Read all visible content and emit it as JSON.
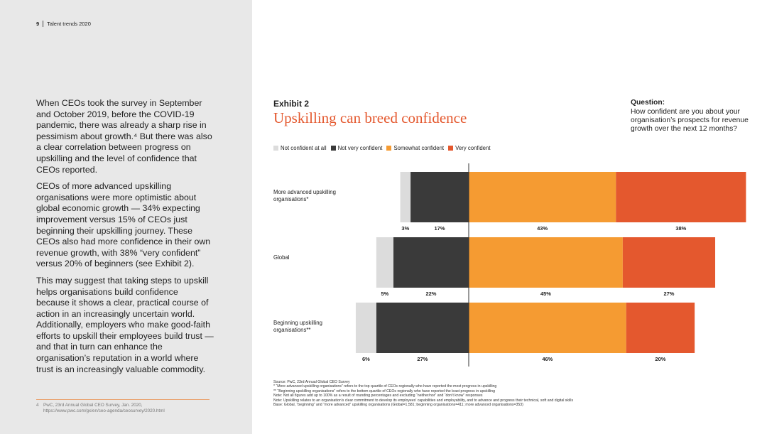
{
  "header": {
    "page_number": "9",
    "title": "Talent trends 2020"
  },
  "body": [
    "When CEOs took the survey in September and October 2019, before the COVID-19 pandemic, there was already a sharp rise in pessimism about growth.⁴ But there was also a clear correlation between progress on upskilling and the level of confidence that CEOs reported.",
    "CEOs of more advanced upskilling organisations were more optimistic about global economic growth — 34% expecting improvement versus 15% of CEOs just beginning their upskilling journey. These CEOs also had more confidence in their own revenue growth, with 38% “very confident” versus 20% of beginners (see Exhibit 2).",
    "This may suggest that taking steps to upskill helps organisations build confidence because it shows a clear, practical course of action in an increasingly uncertain world. Additionally, employers who make good-faith efforts to upskill their employees build trust — and that in turn can enhance the organisation’s reputation in a world where trust is an increasingly valuable commodity."
  ],
  "footnote": {
    "number": "4",
    "text": "PwC, 23rd Annual Global CEO Survey, Jan. 2020,",
    "url": "https://www.pwc.com/gx/en/ceo-agenda/ceosurvey/2020.html"
  },
  "chart_data": {
    "type": "bar",
    "orientation": "horizontal",
    "divergent": true,
    "exhibit": "Exhibit 2",
    "title": "Upskilling can breed confidence",
    "question_label": "Question:",
    "question": "How confident are you about your organisation’s prospects for revenue growth over the next 12 months?",
    "categories": [
      "More advanced upskilling organisations*",
      "Global",
      "Beginning upskilling organisations**"
    ],
    "series": [
      {
        "name": "Not confident at all",
        "color": "#dcdcdc",
        "side": "left",
        "values": [
          3,
          5,
          6
        ],
        "value_labels": [
          "3%",
          "5%",
          "6%"
        ]
      },
      {
        "name": "Not very confident",
        "color": "#3a3a3a",
        "side": "left",
        "values": [
          17,
          22,
          27
        ],
        "value_labels": [
          "17%",
          "22%",
          "27%"
        ]
      },
      {
        "name": "Somewhat confident",
        "color": "#f59b32",
        "side": "right",
        "values": [
          43,
          45,
          46
        ],
        "value_labels": [
          "43%",
          "45%",
          "46%"
        ]
      },
      {
        "name": "Very confident",
        "color": "#e4582e",
        "side": "right",
        "values": [
          38,
          27,
          20
        ],
        "value_labels": [
          "38%",
          "27%",
          "20%"
        ]
      }
    ],
    "notes": [
      "Source: PwC, 23rd Annual Global CEO Survey",
      "* “More advanced upskilling organisations” refers to the top quartile of CEOs regionally who have reported the most progress in upskilling",
      "** “Beginning upskilling organisations” refers to the bottom quartile of CEOs regionally who have reported the least progress in upskilling",
      "Note: Not all figures add up to 100% as a result of rounding percentages and excluding “neither/nor” and “don’t know” responses",
      "Note: Upskilling relates to an organisation’s clear commitment to develop its employees’ capabilities and employability, and to advance and progress their technical, soft and digital skills",
      "Base: Global, “beginning” and “more advanced” upskilling organisations (Global=1,581; beginning organisations=411; more advanced organisations=353)"
    ]
  }
}
